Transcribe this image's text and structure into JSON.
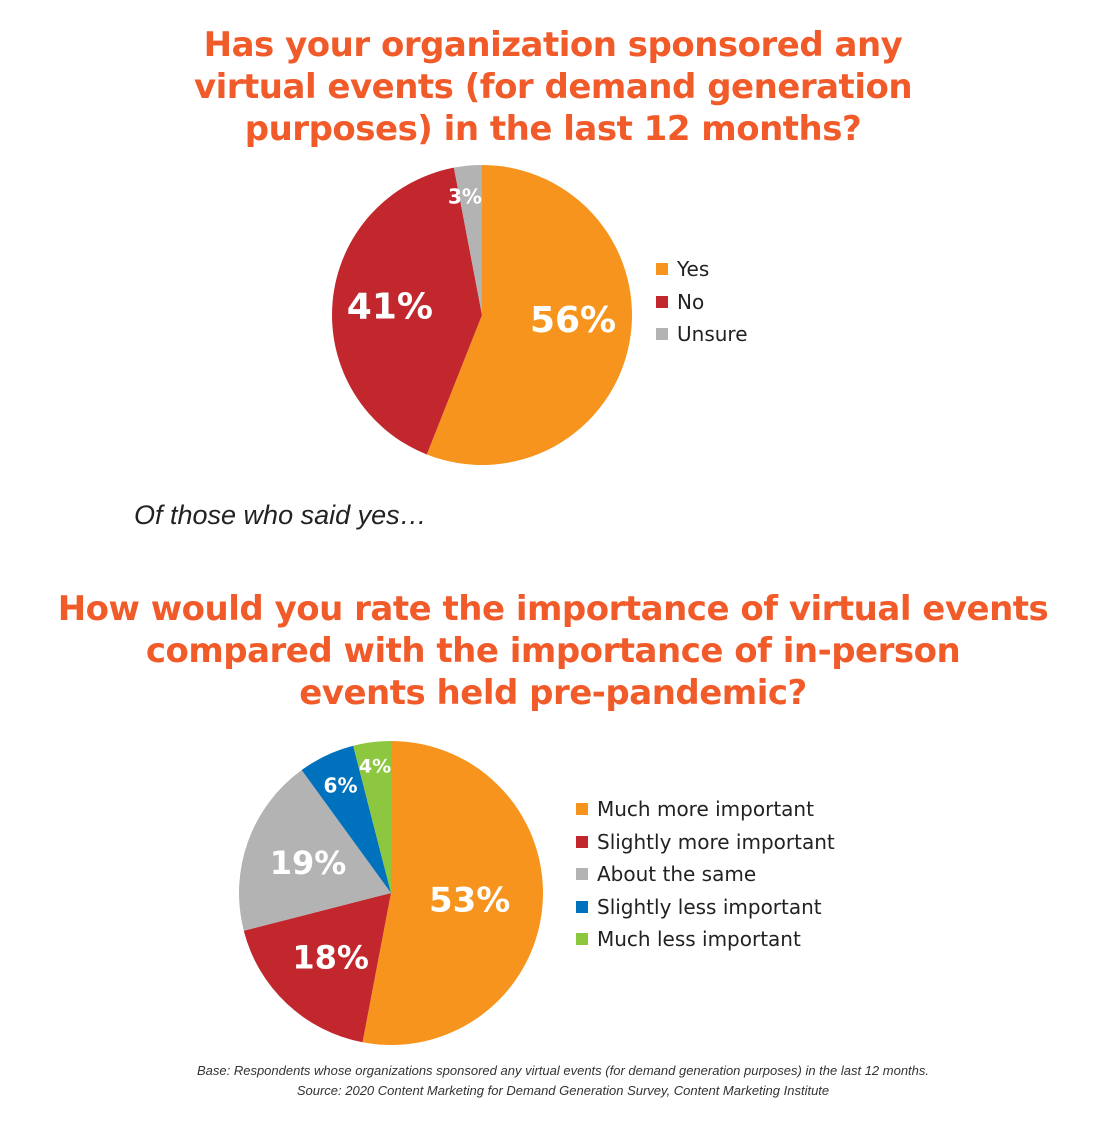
{
  "titles": {
    "q1_lines": [
      "Has your organization sponsored any",
      "virtual events (for demand generation",
      "purposes) in the last 12 months?"
    ],
    "subtitle": "Of those who said yes…",
    "q2_lines": [
      "How would you rate the importance of virtual events",
      "compared with the importance of in-person",
      "events held pre-pandemic?"
    ]
  },
  "colors": {
    "title": "#f15a29",
    "orange": "#f7941d",
    "red": "#c1272d",
    "gray": "#b3b3b3",
    "blue": "#0071bc",
    "green": "#8dc63f"
  },
  "footnote": {
    "base": "Base: Respondents whose organizations sponsored any virtual events (for demand generation purposes) in the last 12 months.",
    "source": "Source: 2020 Content Marketing for Demand Generation Survey, Content Marketing Institute"
  },
  "chart_data": [
    {
      "type": "pie",
      "title": "Has your organization sponsored any virtual events (for demand generation purposes) in the last 12 months?",
      "categories": [
        "Yes",
        "No",
        "Unsure"
      ],
      "values": [
        56,
        41,
        3
      ],
      "labels": [
        "56%",
        "41%",
        "3%"
      ],
      "colors": [
        "#f7941d",
        "#c1272d",
        "#b3b3b3"
      ],
      "legend_position": "right",
      "start_angle_deg": 0,
      "direction": "clockwise"
    },
    {
      "type": "pie",
      "title": "How would you rate the importance of virtual events compared with the importance of in-person events held pre-pandemic?",
      "subtitle": "Of those who said yes…",
      "categories": [
        "Much more important",
        "Slightly more important",
        "About the same",
        "Slightly less important",
        "Much less important"
      ],
      "values": [
        53,
        18,
        19,
        6,
        4
      ],
      "labels": [
        "53%",
        "18%",
        "19%",
        "6%",
        "4%"
      ],
      "colors": [
        "#f7941d",
        "#c1272d",
        "#b3b3b3",
        "#0071bc",
        "#8dc63f"
      ],
      "legend_position": "right",
      "start_angle_deg": 0,
      "direction": "clockwise"
    }
  ]
}
